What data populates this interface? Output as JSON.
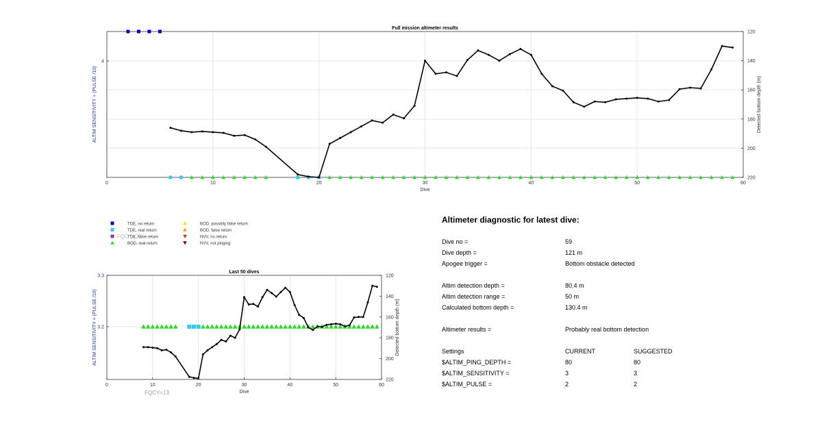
{
  "chart_data": [
    {
      "type": "scatter",
      "title": "Full mission altimeter results",
      "xlabel": "Dive",
      "ylabel_left": "ALTIM SENSITIVITY + (PULSE /10)",
      "ylabel_right": "Detected bottom depth (m)",
      "xlim": [
        0,
        60
      ],
      "xticks": [
        0,
        10,
        20,
        30,
        40,
        50,
        60
      ],
      "yticks_left": [
        4
      ],
      "ylim_right": [
        120,
        220
      ],
      "yticks_right": [
        120,
        140,
        160,
        180,
        200,
        220
      ],
      "right_axis_reversed": true,
      "grid": true,
      "series": [
        {
          "name": "TDE, no return",
          "color": "#0000cc",
          "marker": "square",
          "x": [
            2,
            3,
            4,
            5
          ]
        },
        {
          "name": "TDE, real return",
          "color": "#33ccee",
          "marker": "square",
          "x": [
            6,
            7,
            18,
            19,
            20
          ]
        },
        {
          "name": "BOD, real return",
          "color": "#22dd22",
          "marker": "triangle",
          "x": [
            8,
            9,
            10,
            11,
            12,
            13,
            14,
            15,
            21,
            22,
            23,
            24,
            25,
            26,
            27,
            28,
            29,
            30,
            31,
            32,
            33,
            34,
            35,
            36,
            37,
            38,
            39,
            40,
            41,
            42,
            43,
            44,
            45,
            46,
            47,
            48,
            49,
            50,
            51,
            52,
            53,
            54,
            55,
            56,
            57,
            58,
            59
          ]
        },
        {
          "name": "Detected bottom depth",
          "color": "#000000",
          "marker": "line",
          "x": [
            6,
            7,
            8,
            9,
            10,
            11,
            12,
            13,
            14,
            15,
            18,
            19,
            20,
            21,
            22,
            23,
            24,
            25,
            26,
            27,
            28,
            29,
            30,
            31,
            32,
            33,
            34,
            35,
            36,
            37,
            38,
            39,
            40,
            41,
            42,
            43,
            44,
            45,
            46,
            47,
            48,
            49,
            50,
            51,
            52,
            53,
            54,
            55,
            56,
            57,
            58,
            59
          ],
          "y": [
            186,
            188,
            189,
            188.5,
            189,
            189.5,
            191.5,
            191,
            194,
            199,
            218,
            219.5,
            220,
            197,
            193,
            189,
            185,
            181,
            182.5,
            177,
            179.5,
            171,
            140,
            149,
            148,
            150.5,
            139.5,
            133,
            136,
            140,
            135.5,
            132,
            136,
            149,
            157.5,
            160.5,
            168.5,
            171.5,
            168,
            168.5,
            166.5,
            166,
            165.5,
            166,
            168,
            167,
            159.5,
            158.5,
            159,
            146,
            130,
            131
          ]
        }
      ]
    },
    {
      "type": "scatter",
      "title": "Last 50 dives",
      "xlabel": "Dive",
      "ylabel_left": "ALTIM SENSITIVITY + (PULSE /10)",
      "ylabel_right": "Detected bottom depth (m)",
      "xlim": [
        0,
        60
      ],
      "xticks": [
        0,
        10,
        20,
        30,
        40,
        50,
        60
      ],
      "ylim_left": [
        3.1,
        3.3
      ],
      "yticks_left": [
        "3.3",
        "3.2"
      ],
      "ylim_right": [
        120,
        220
      ],
      "yticks_right": [
        120,
        140,
        160,
        180,
        200,
        220
      ],
      "right_axis_reversed": true,
      "grid": true,
      "annotation": "FQCY=13",
      "series": [
        {
          "name": "TDE, real return",
          "color": "#33ccee",
          "marker": "square",
          "x": [
            18,
            19,
            20
          ]
        },
        {
          "name": "BOD, real return",
          "color": "#22dd22",
          "marker": "triangle",
          "x": [
            8,
            9,
            10,
            11,
            12,
            13,
            14,
            15,
            21,
            22,
            23,
            24,
            25,
            26,
            27,
            28,
            29,
            30,
            31,
            32,
            33,
            34,
            35,
            36,
            37,
            38,
            39,
            40,
            41,
            42,
            43,
            44,
            45,
            46,
            47,
            48,
            49,
            50,
            51,
            52,
            53,
            54,
            55,
            56,
            57,
            58,
            59
          ]
        },
        {
          "name": "Detected bottom depth",
          "color": "#000000",
          "marker": "line",
          "x": [
            8,
            9,
            10,
            11,
            12,
            13,
            14,
            15,
            18,
            19,
            20,
            21,
            22,
            23,
            24,
            25,
            26,
            27,
            28,
            29,
            30,
            31,
            32,
            33,
            34,
            35,
            36,
            37,
            38,
            39,
            40,
            41,
            42,
            43,
            44,
            45,
            46,
            47,
            48,
            49,
            50,
            51,
            52,
            53,
            54,
            55,
            56,
            57,
            58,
            59
          ],
          "y": [
            189,
            189,
            189.5,
            190,
            192,
            191.5,
            194,
            198,
            217.5,
            218.5,
            219,
            196,
            192,
            189,
            186,
            182,
            183.5,
            178,
            180,
            172,
            141,
            148,
            147.5,
            150,
            141,
            134,
            137,
            140.5,
            136,
            132,
            136,
            148.5,
            158,
            161,
            170,
            172.5,
            169,
            169.5,
            167.5,
            167,
            166.5,
            167,
            169,
            168,
            160.5,
            160,
            160,
            146,
            130,
            131
          ]
        }
      ]
    }
  ],
  "legend": {
    "items": [
      {
        "label": "TDE, no return",
        "color": "#0000cc",
        "shape": "square"
      },
      {
        "label": "TDE, real return",
        "color": "#33ccee",
        "shape": "square"
      },
      {
        "label": "TDE, false return",
        "color": "#8833cc",
        "shape": "square"
      },
      {
        "label": "BOD, real return",
        "color": "#22dd22",
        "shape": "triangle"
      },
      {
        "label": "BOD, possibly false return",
        "color": "#ffdd00",
        "shape": "triangle"
      },
      {
        "label": "BOD, false return",
        "color": "#ff9900",
        "shape": "triangle"
      },
      {
        "label": "NVV, no return",
        "color": "#dd2200",
        "shape": "triangle-down"
      },
      {
        "label": "NVV, not pinging",
        "color": "#880000",
        "shape": "triangle-down"
      }
    ],
    "overlay_text": "FQCY=13"
  },
  "diagnostic": {
    "title": "Altimeter diagnostic for latest dive:",
    "dive_no_label": "Dive no =",
    "dive_no_value": "59",
    "dive_depth_label": "Dive depth =",
    "dive_depth_value": "121 m",
    "apogee_label": "Apogee trigger =",
    "apogee_value": "Bottom obstacle detected",
    "altim_depth_label": "Altim detection depth =",
    "altim_depth_value": "80.4 m",
    "altim_range_label": "Altim detection range =",
    "altim_range_value": "50 m",
    "calc_depth_label": "Calculated bottom depth =",
    "calc_depth_value": "130.4 m",
    "results_label": "Altimeter results =",
    "results_value": "Probably real bottom detection",
    "settings_label": "Settings",
    "current_label": "CURRENT",
    "suggested_label": "SUGGESTED",
    "ping_depth_label": "$ALTIM_PING_DEPTH =",
    "ping_depth_current": "80",
    "ping_depth_suggested": "80",
    "sensitivity_label": "$ALTIM_SENSITIVITY =",
    "sensitivity_current": "3",
    "sensitivity_suggested": "3",
    "pulse_label": "$ALTIM_PULSE =",
    "pulse_current": "2",
    "pulse_suggested": "2"
  }
}
